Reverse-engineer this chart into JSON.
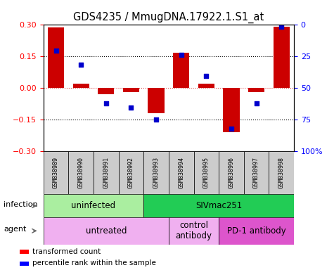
{
  "title": "GDS4235 / MmugDNA.17922.1.S1_at",
  "samples": [
    "GSM838989",
    "GSM838990",
    "GSM838991",
    "GSM838992",
    "GSM838993",
    "GSM838994",
    "GSM838995",
    "GSM838996",
    "GSM838997",
    "GSM838998"
  ],
  "red_bars": [
    0.285,
    0.02,
    -0.03,
    -0.02,
    -0.12,
    0.165,
    0.02,
    -0.21,
    -0.02,
    0.29
  ],
  "blue_dot_values": [
    0.175,
    0.11,
    -0.075,
    -0.095,
    -0.15,
    0.155,
    0.055,
    -0.195,
    -0.075,
    0.29
  ],
  "ylim": [
    -0.3,
    0.3
  ],
  "y2lim": [
    0,
    100
  ],
  "yticks": [
    -0.3,
    -0.15,
    0.0,
    0.15,
    0.3
  ],
  "y2ticks": [
    0,
    25,
    50,
    75,
    100
  ],
  "infection_groups": [
    {
      "label": "uninfected",
      "start": 0,
      "end": 4,
      "color": "#aaeea0"
    },
    {
      "label": "SIVmac251",
      "start": 4,
      "end": 10,
      "color": "#22cc55"
    }
  ],
  "agent_groups": [
    {
      "label": "untreated",
      "start": 0,
      "end": 5,
      "color": "#f0b0f0"
    },
    {
      "label": "control\nantibody",
      "start": 5,
      "end": 7,
      "color": "#f0b0f0"
    },
    {
      "label": "PD-1 antibody",
      "start": 7,
      "end": 10,
      "color": "#dd55cc"
    }
  ],
  "bar_color": "#CC0000",
  "dot_color": "#0000CC",
  "zero_line_color": "#CC0000",
  "bg_color": "#FFFFFF",
  "sample_box_color": "#CCCCCC",
  "title_fontsize": 10.5
}
